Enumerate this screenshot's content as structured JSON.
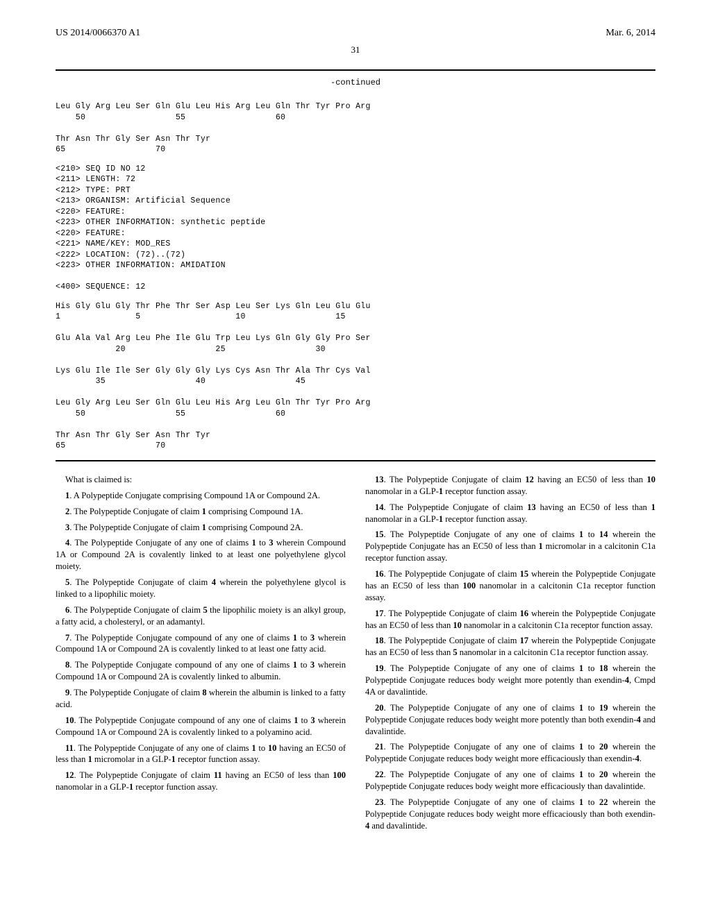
{
  "header": {
    "left": "US 2014/0066370 A1",
    "right": "Mar. 6, 2014"
  },
  "page_number": "31",
  "continued_label": "-continued",
  "sequence_top": "Leu Gly Arg Leu Ser Gln Glu Leu His Arg Leu Gln Thr Tyr Pro Arg\n    50                  55                  60\n\nThr Asn Thr Gly Ser Asn Thr Tyr\n65                  70",
  "seq_header": "<210> SEQ ID NO 12\n<211> LENGTH: 72\n<212> TYPE: PRT\n<213> ORGANISM: Artificial Sequence\n<220> FEATURE:\n<223> OTHER INFORMATION: synthetic peptide\n<220> FEATURE:\n<221> NAME/KEY: MOD_RES\n<222> LOCATION: (72)..(72)\n<223> OTHER INFORMATION: AMIDATION\n\n<400> SEQUENCE: 12",
  "sequence_bottom": "His Gly Glu Gly Thr Phe Thr Ser Asp Leu Ser Lys Gln Leu Glu Glu\n1               5                   10                  15\n\nGlu Ala Val Arg Leu Phe Ile Glu Trp Leu Lys Gln Gly Gly Pro Ser\n            20                  25                  30\n\nLys Glu Ile Ile Ser Gly Gly Gly Lys Cys Asn Thr Ala Thr Cys Val\n        35                  40                  45\n\nLeu Gly Arg Leu Ser Gln Glu Leu His Arg Leu Gln Thr Tyr Pro Arg\n    50                  55                  60\n\nThr Asn Thr Gly Ser Asn Thr Tyr\n65                  70",
  "claims_intro": "What is claimed is:",
  "claims_left": [
    {
      "n": "1",
      "t": ". A Polypeptide Conjugate comprising Compound 1A or Compound 2A."
    },
    {
      "n": "2",
      "t": ". The Polypeptide Conjugate of claim 1 comprising Compound 1A."
    },
    {
      "n": "3",
      "t": ". The Polypeptide Conjugate of claim 1 comprising Compound 2A."
    },
    {
      "n": "4",
      "t": ". The Polypeptide Conjugate of any one of claims 1 to 3 wherein Compound 1A or Compound 2A is covalently linked to at least one polyethylene glycol moiety."
    },
    {
      "n": "5",
      "t": ". The Polypeptide Conjugate of claim 4 wherein the polyethylene glycol is linked to a lipophilic moiety."
    },
    {
      "n": "6",
      "t": ". The Polypeptide Conjugate of claim 5 the lipophilic moiety is an alkyl group, a fatty acid, a cholesteryl, or an adamantyl."
    },
    {
      "n": "7",
      "t": ". The Polypeptide Conjugate compound of any one of claims 1 to 3 wherein Compound 1A or Compound 2A is covalently linked to at least one fatty acid."
    },
    {
      "n": "8",
      "t": ". The Polypeptide Conjugate compound of any one of claims 1 to 3 wherein Compound 1A or Compound 2A is covalently linked to albumin."
    },
    {
      "n": "9",
      "t": ". The Polypeptide Conjugate of claim 8 wherein the albumin is linked to a fatty acid."
    },
    {
      "n": "10",
      "t": ". The Polypeptide Conjugate compound of any one of claims 1 to 3 wherein Compound 1A or Compound 2A is covalently linked to a polyamino acid."
    },
    {
      "n": "11",
      "t": ". The Polypeptide Conjugate of any one of claims 1 to 10 having an EC50 of less than 1 micromolar in a GLP-1 receptor function assay."
    },
    {
      "n": "12",
      "t": ". The Polypeptide Conjugate of claim 11 having an EC50 of less than 100 nanomolar in a GLP-1 receptor function assay."
    }
  ],
  "claims_right": [
    {
      "n": "13",
      "t": ". The Polypeptide Conjugate of claim 12 having an EC50 of less than 10 nanomolar in a GLP-1 receptor function assay."
    },
    {
      "n": "14",
      "t": ". The Polypeptide Conjugate of claim 13 having an EC50 of less than 1 nanomolar in a GLP-1 receptor function assay."
    },
    {
      "n": "15",
      "t": ". The Polypeptide Conjugate of any one of claims 1 to 14 wherein the Polypeptide Conjugate has an EC50 of less than 1 micromolar in a calcitonin C1a receptor function assay."
    },
    {
      "n": "16",
      "t": ". The Polypeptide Conjugate of claim 15 wherein the Polypeptide Conjugate has an EC50 of less than 100 nanomolar in a calcitonin C1a receptor function assay."
    },
    {
      "n": "17",
      "t": ". The Polypeptide Conjugate of claim 16 wherein the Polypeptide Conjugate has an EC50 of less than 10 nanomolar in a calcitonin C1a receptor function assay."
    },
    {
      "n": "18",
      "t": ". The Polypeptide Conjugate of claim 17 wherein the Polypeptide Conjugate has an EC50 of less than 5 nanomolar in a calcitonin C1a receptor function assay."
    },
    {
      "n": "19",
      "t": ". The Polypeptide Conjugate of any one of claims 1 to 18 wherein the Polypeptide Conjugate reduces body weight more potently than exendin-4, Cmpd 4A or davalintide."
    },
    {
      "n": "20",
      "t": ". The Polypeptide Conjugate of any one of claims 1 to 19 wherein the Polypeptide Conjugate reduces body weight more potently than both exendin-4 and davalintide."
    },
    {
      "n": "21",
      "t": ". The Polypeptide Conjugate of any one of claims 1 to 20 wherein the Polypeptide Conjugate reduces body weight more efficaciously than exendin-4."
    },
    {
      "n": "22",
      "t": ". The Polypeptide Conjugate of any one of claims 1 to 20 wherein the Polypeptide Conjugate reduces body weight more efficaciously than davalintide."
    },
    {
      "n": "23",
      "t": ". The Polypeptide Conjugate of any one of claims 1 to 22 wherein the Polypeptide Conjugate reduces body weight more efficaciously than both exendin-4 and davalintide."
    }
  ]
}
